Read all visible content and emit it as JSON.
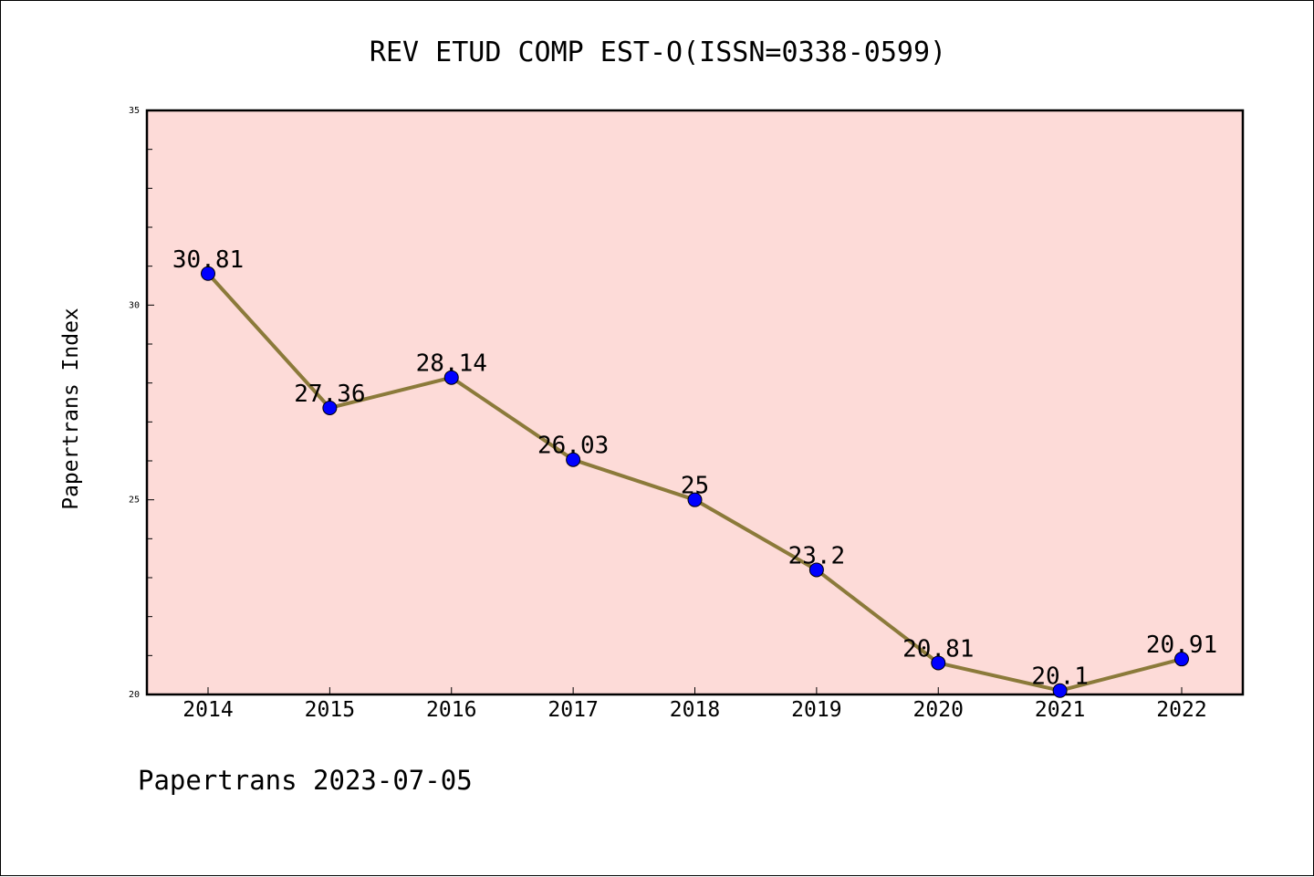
{
  "chart_data": {
    "type": "line",
    "title": "REV ETUD COMP EST-O(ISSN=0338-0599)",
    "xlabel": "",
    "ylabel": "Papertrans Index",
    "categories": [
      "2014",
      "2015",
      "2016",
      "2017",
      "2018",
      "2019",
      "2020",
      "2021",
      "2022"
    ],
    "series": [
      {
        "values": [
          30.81,
          27.36,
          28.14,
          26.03,
          25,
          23.2,
          20.81,
          20.1,
          20.91
        ],
        "data_labels": [
          "30.81",
          "27.36",
          "28.14",
          "26.03",
          "25",
          "23.2",
          "20.81",
          "20.1",
          "20.91"
        ]
      }
    ],
    "ylim": [
      20,
      35
    ],
    "yticks": [
      20,
      25,
      30,
      35
    ],
    "ytick_labels": [
      "20",
      "25",
      "30",
      "35"
    ],
    "grid": false,
    "legend": "none",
    "colors": {
      "plot_background": "#fddbd8",
      "line": "#8b7a3a",
      "marker": "#0000ff",
      "axes": "#000000"
    }
  },
  "footer": {
    "text": "Papertrans 2023-07-05"
  }
}
